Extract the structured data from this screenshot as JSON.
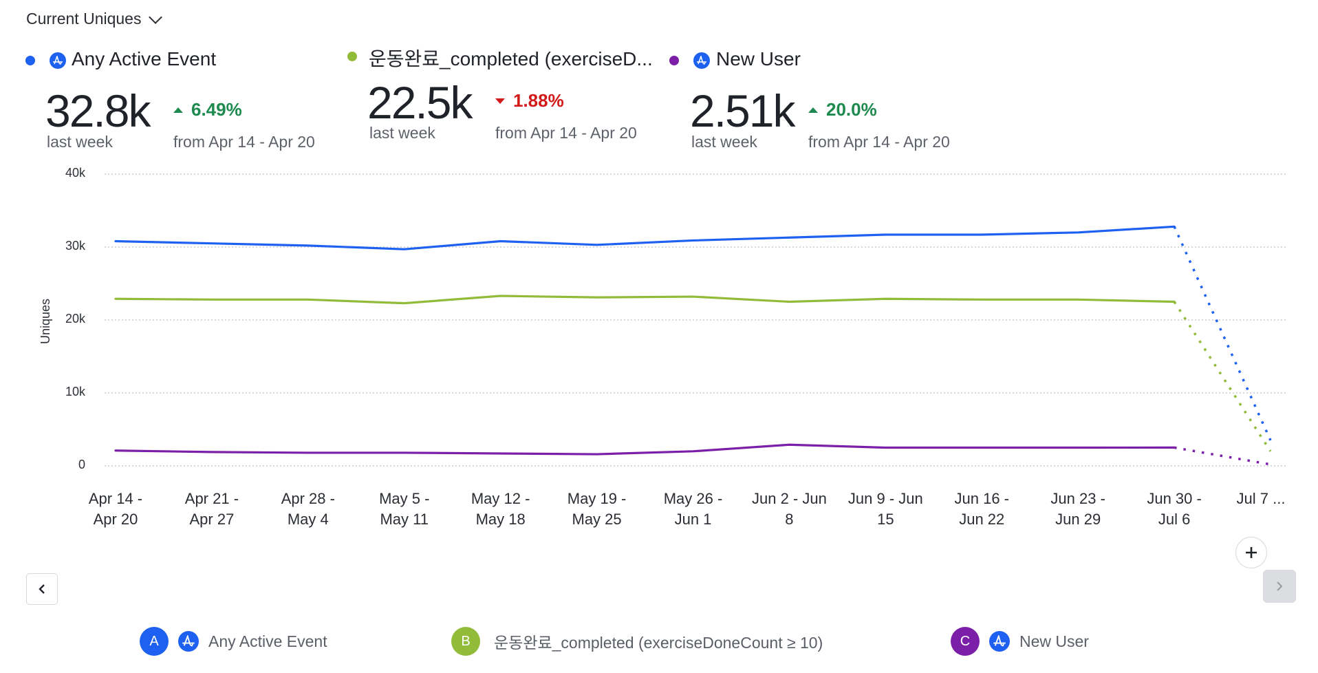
{
  "header": {
    "metric_selector": "Current Uniques",
    "dropdown_icon": "chevron-down-icon"
  },
  "metrics": [
    {
      "title": "Any Active Event",
      "color": "#1e61f0",
      "icon": "amplitude-event-icon",
      "value": "32.8k",
      "period": "last week",
      "change": "6.49%",
      "direction": "up",
      "change_color": "#1e8a4f",
      "compare": "from Apr 14 - Apr 20"
    },
    {
      "title": "운동완료_completed (exerciseD...",
      "color": "#92bb3a",
      "value": "22.5k",
      "period": "last week",
      "change": "1.88%",
      "direction": "down",
      "change_color": "#d21a1a",
      "compare": "from Apr 14 - Apr 20"
    },
    {
      "title": "New User",
      "color": "#7b1fa8",
      "icon": "amplitude-event-icon",
      "value": "2.51k",
      "period": "last week",
      "change": "20.0%",
      "direction": "up",
      "change_color": "#1e8a4f",
      "compare": "from Apr 14 - Apr 20"
    }
  ],
  "controls": {
    "prev_icon": "chevron-left-icon",
    "next_icon": "chevron-right-icon",
    "add_icon": "plus-icon",
    "add_label": "+"
  },
  "legend": [
    {
      "badge": "A",
      "label": "Any Active Event",
      "color": "#1e61f0",
      "has_icon": true
    },
    {
      "badge": "B",
      "label": "운동완료_completed (exerciseDoneCount ≥ 10)",
      "color": "#92bb3a",
      "has_icon": false
    },
    {
      "badge": "C",
      "label": "New User",
      "color": "#7b1fa8",
      "has_icon": true
    }
  ],
  "chart_data": {
    "type": "line",
    "title": "",
    "xlabel": "",
    "ylabel": "Uniques",
    "ylim": [
      0,
      40000
    ],
    "yticks": [
      0,
      10000,
      20000,
      30000,
      40000
    ],
    "ytick_labels": [
      "0",
      "10k",
      "20k",
      "30k",
      "40k"
    ],
    "grid": true,
    "categories": [
      [
        "Apr 14 -",
        "Apr 20"
      ],
      [
        "Apr 21 -",
        "Apr 27"
      ],
      [
        "Apr 28 -",
        "May 4"
      ],
      [
        "May 5 -",
        "May 11"
      ],
      [
        "May 12 -",
        "May 18"
      ],
      [
        "May 19 -",
        "May 25"
      ],
      [
        "May 26 -",
        "Jun 1"
      ],
      [
        "Jun 2 - Jun",
        "8"
      ],
      [
        "Jun 9 - Jun",
        "15"
      ],
      [
        "Jun 16 -",
        "Jun 22"
      ],
      [
        "Jun 23 -",
        "Jun 29"
      ],
      [
        "Jun 30 -",
        "Jul 6"
      ],
      [
        "Jul 7 ...",
        ""
      ]
    ],
    "incomplete_last_period": true,
    "series": [
      {
        "name": "Any Active Event",
        "color": "#1e61f0",
        "values": [
          30800,
          30500,
          30200,
          29700,
          30800,
          30300,
          30900,
          31300,
          31700,
          31700,
          32000,
          32800,
          3500
        ]
      },
      {
        "name": "운동완료_completed (exerciseDoneCount ≥ 10)",
        "color": "#92bb3a",
        "values": [
          22900,
          22800,
          22800,
          22300,
          23300,
          23100,
          23200,
          22500,
          22900,
          22800,
          22800,
          22500,
          2000
        ]
      },
      {
        "name": "New User",
        "color": "#7b1fa8",
        "values": [
          2100,
          1900,
          1800,
          1800,
          1700,
          1600,
          2000,
          2900,
          2500,
          2500,
          2500,
          2510,
          200
        ]
      }
    ]
  }
}
